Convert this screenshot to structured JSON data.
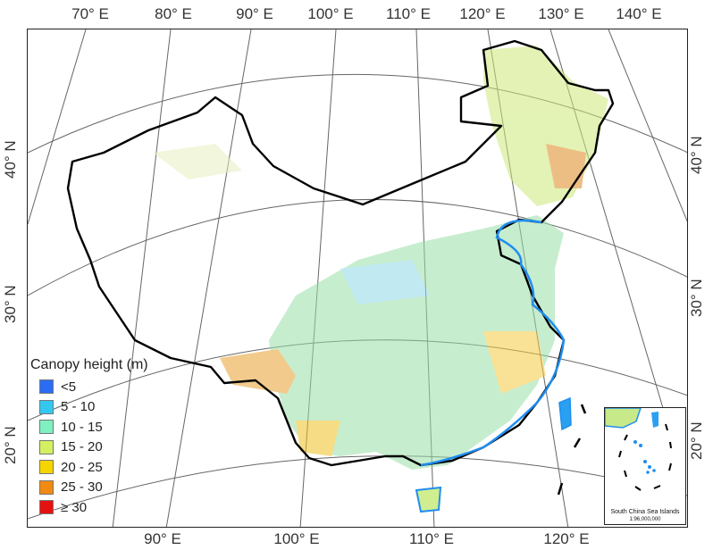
{
  "top_lon_labels": [
    "70° E",
    "80° E",
    "90° E",
    "100° E",
    "110° E",
    "120° E",
    "130° E",
    "140° E"
  ],
  "bottom_lon_labels": [
    "90° E",
    "100° E",
    "110° E",
    "120° E"
  ],
  "left_lat_labels": [
    "40° N",
    "30° N",
    "20° N"
  ],
  "right_lat_labels": [
    "40° N",
    "30° N",
    "20° N"
  ],
  "legend": {
    "title": "Canopy height (m)",
    "items": [
      {
        "label": "<5",
        "color": "#2a6df4"
      },
      {
        "label": "5 - 10",
        "color": "#33c8f0"
      },
      {
        "label": "10 - 15",
        "color": "#7ff0c0"
      },
      {
        "label": "15 - 20",
        "color": "#d4f060"
      },
      {
        "label": "20 - 25",
        "color": "#f5d400"
      },
      {
        "label": "25 - 30",
        "color": "#f08a10"
      },
      {
        "label": "≥ 30",
        "color": "#e51010"
      }
    ]
  },
  "inset": {
    "title": "South China Sea Islands",
    "scale": "1:96,000,000"
  }
}
